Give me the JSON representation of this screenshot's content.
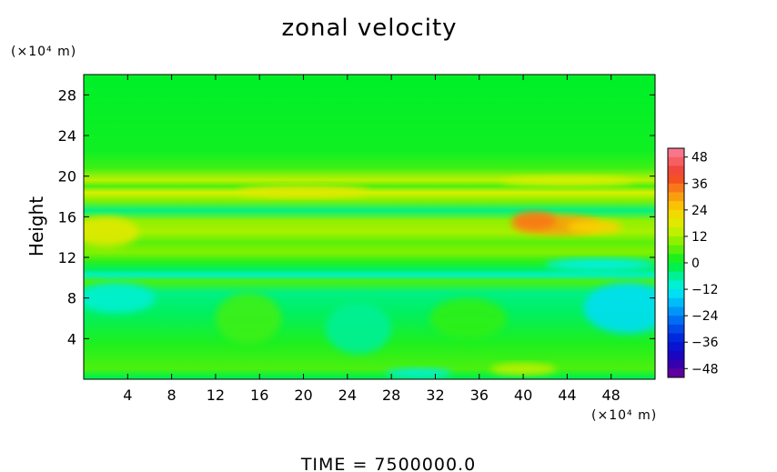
{
  "chart_data": {
    "type": "heatmap",
    "title": "zonal velocity",
    "ylabel": "Height",
    "x_unit": "(×10⁴ m)",
    "y_unit": "(×10⁴ m)",
    "footer": "TIME  =  7500000.0",
    "xlim": [
      0,
      52
    ],
    "ylim": [
      0,
      30
    ],
    "x_ticks": [
      4,
      8,
      12,
      16,
      20,
      24,
      28,
      32,
      36,
      40,
      44,
      48
    ],
    "y_ticks": [
      4,
      8,
      12,
      16,
      20,
      24,
      28
    ],
    "colorbar": {
      "range": [
        -52,
        52
      ],
      "ticks": [
        48,
        36,
        24,
        12,
        0,
        -12,
        -24,
        -36,
        -48
      ],
      "tick_labels": [
        "48",
        "36",
        "24",
        "12",
        "0",
        "−12",
        "−24",
        "−36",
        "−48"
      ]
    },
    "bands": [
      {
        "y": 29.0,
        "value": 0
      },
      {
        "y": 22.5,
        "value": 1
      },
      {
        "y": 20.8,
        "value": 4
      },
      {
        "y": 19.6,
        "value": 14
      },
      {
        "y": 19.0,
        "value": 5
      },
      {
        "y": 18.4,
        "value": 16
      },
      {
        "y": 17.6,
        "value": 9
      },
      {
        "y": 16.6,
        "value": -5
      },
      {
        "y": 15.6,
        "value": 10
      },
      {
        "y": 14.5,
        "value": 12
      },
      {
        "y": 13.5,
        "value": 6
      },
      {
        "y": 12.5,
        "value": 9
      },
      {
        "y": 11.6,
        "value": 3
      },
      {
        "y": 10.8,
        "value": -3
      },
      {
        "y": 10.3,
        "value": -9
      },
      {
        "y": 9.6,
        "value": 5
      },
      {
        "y": 8.5,
        "value": -5
      },
      {
        "y": 6.5,
        "value": -3
      },
      {
        "y": 3.5,
        "value": 2
      },
      {
        "y": 1.0,
        "value": 5
      },
      {
        "y": 0.2,
        "value": -2
      }
    ],
    "blobs": [
      {
        "x": 43.0,
        "y": 15.2,
        "rx": 4.0,
        "ry": 1.0,
        "value": 30
      },
      {
        "x": 46.5,
        "y": 15.0,
        "rx": 2.5,
        "ry": 0.7,
        "value": 24
      },
      {
        "x": 41.0,
        "y": 15.6,
        "rx": 2.0,
        "ry": 0.9,
        "value": 34
      },
      {
        "x": 2.0,
        "y": 14.5,
        "rx": 3.0,
        "ry": 1.5,
        "value": 18
      },
      {
        "x": 47.0,
        "y": 11.3,
        "rx": 5.0,
        "ry": 0.6,
        "value": -12
      },
      {
        "x": 49.5,
        "y": 7.0,
        "rx": 4.0,
        "ry": 2.5,
        "value": -14
      },
      {
        "x": 3.0,
        "y": 8.0,
        "rx": 3.5,
        "ry": 1.5,
        "value": -10
      },
      {
        "x": 30.5,
        "y": 0.6,
        "rx": 3.0,
        "ry": 0.5,
        "value": -11
      },
      {
        "x": 40.0,
        "y": 1.0,
        "rx": 3.0,
        "ry": 0.6,
        "value": 14
      },
      {
        "x": 25.0,
        "y": 5.0,
        "rx": 3.0,
        "ry": 2.5,
        "value": -6
      },
      {
        "x": 15.0,
        "y": 6.0,
        "rx": 3.0,
        "ry": 2.5,
        "value": 4
      },
      {
        "x": 35.0,
        "y": 6.0,
        "rx": 3.5,
        "ry": 2.0,
        "value": 3
      },
      {
        "x": 20.0,
        "y": 18.5,
        "rx": 6.0,
        "ry": 0.6,
        "value": 18
      },
      {
        "x": 44.0,
        "y": 19.5,
        "rx": 6.0,
        "ry": 0.5,
        "value": 16
      }
    ]
  }
}
